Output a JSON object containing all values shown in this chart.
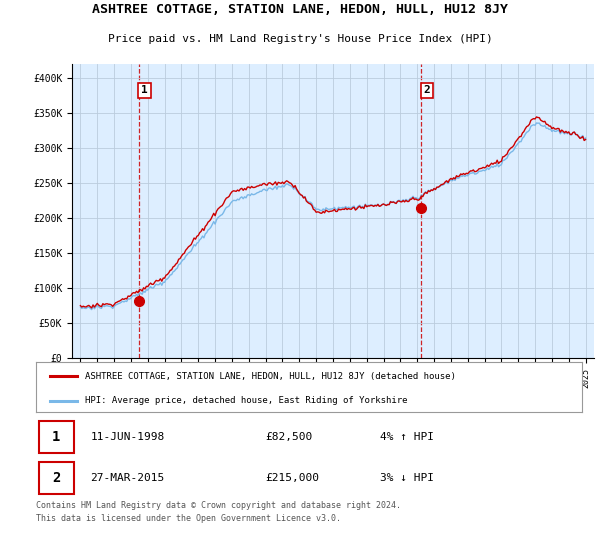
{
  "title": "ASHTREE COTTAGE, STATION LANE, HEDON, HULL, HU12 8JY",
  "subtitle": "Price paid vs. HM Land Registry's House Price Index (HPI)",
  "legend_line1": "ASHTREE COTTAGE, STATION LANE, HEDON, HULL, HU12 8JY (detached house)",
  "legend_line2": "HPI: Average price, detached house, East Riding of Yorkshire",
  "footer": "Contains HM Land Registry data © Crown copyright and database right 2024.\nThis data is licensed under the Open Government Licence v3.0.",
  "sale1_date": "11-JUN-1998",
  "sale1_price": "£82,500",
  "sale1_hpi": "4% ↑ HPI",
  "sale1_year": 1998.45,
  "sale1_value": 82500,
  "sale2_date": "27-MAR-2015",
  "sale2_price": "£215,000",
  "sale2_hpi": "3% ↓ HPI",
  "sale2_year": 2015.23,
  "sale2_value": 215000,
  "hpi_color": "#7ab8e8",
  "price_color": "#cc0000",
  "chart_bg": "#ddeeff",
  "background_color": "#ffffff",
  "grid_color": "#bbccdd",
  "ylim": [
    0,
    420000
  ],
  "xlim_start": 1994.5,
  "xlim_end": 2025.5,
  "yticks": [
    0,
    50000,
    100000,
    150000,
    200000,
    250000,
    300000,
    350000,
    400000
  ]
}
